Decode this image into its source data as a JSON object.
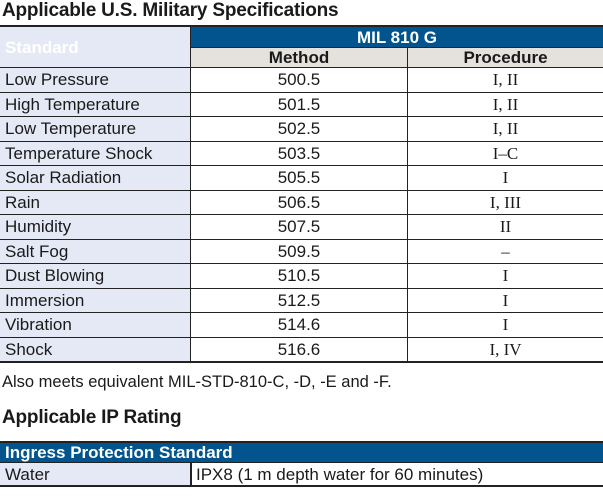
{
  "mil_title": "Applicable U.S. Military Specifications",
  "mil_table": {
    "standard_header": "Standard",
    "group_header": "MIL 810 G",
    "method_header": "Method",
    "procedure_header": "Procedure",
    "rows": [
      {
        "standard": "Low Pressure",
        "method": "500.5",
        "procedure": "I, II"
      },
      {
        "standard": "High Temperature",
        "method": "501.5",
        "procedure": "I, II"
      },
      {
        "standard": "Low Temperature",
        "method": "502.5",
        "procedure": "I, II"
      },
      {
        "standard": "Temperature Shock",
        "method": "503.5",
        "procedure": "I–C"
      },
      {
        "standard": "Solar Radiation",
        "method": "505.5",
        "procedure": "I"
      },
      {
        "standard": "Rain",
        "method": "506.5",
        "procedure": "I, III"
      },
      {
        "standard": "Humidity",
        "method": "507.5",
        "procedure": "II"
      },
      {
        "standard": "Salt Fog",
        "method": "509.5",
        "procedure": "–"
      },
      {
        "standard": "Dust Blowing",
        "method": "510.5",
        "procedure": "I"
      },
      {
        "standard": "Immersion",
        "method": "512.5",
        "procedure": "I"
      },
      {
        "standard": "Vibration",
        "method": "514.6",
        "procedure": "I"
      },
      {
        "standard": "Shock",
        "method": "516.6",
        "procedure": "I, IV"
      }
    ]
  },
  "note": "Also meets equivalent MIL-STD-810-C, -D, -E and -F.",
  "ip_title": "Applicable IP Rating",
  "ip_table": {
    "header": "Ingress Protection Standard",
    "rows": [
      {
        "label": "Water",
        "value": "IPX8 (1 m depth water for 60 minutes)"
      }
    ]
  }
}
